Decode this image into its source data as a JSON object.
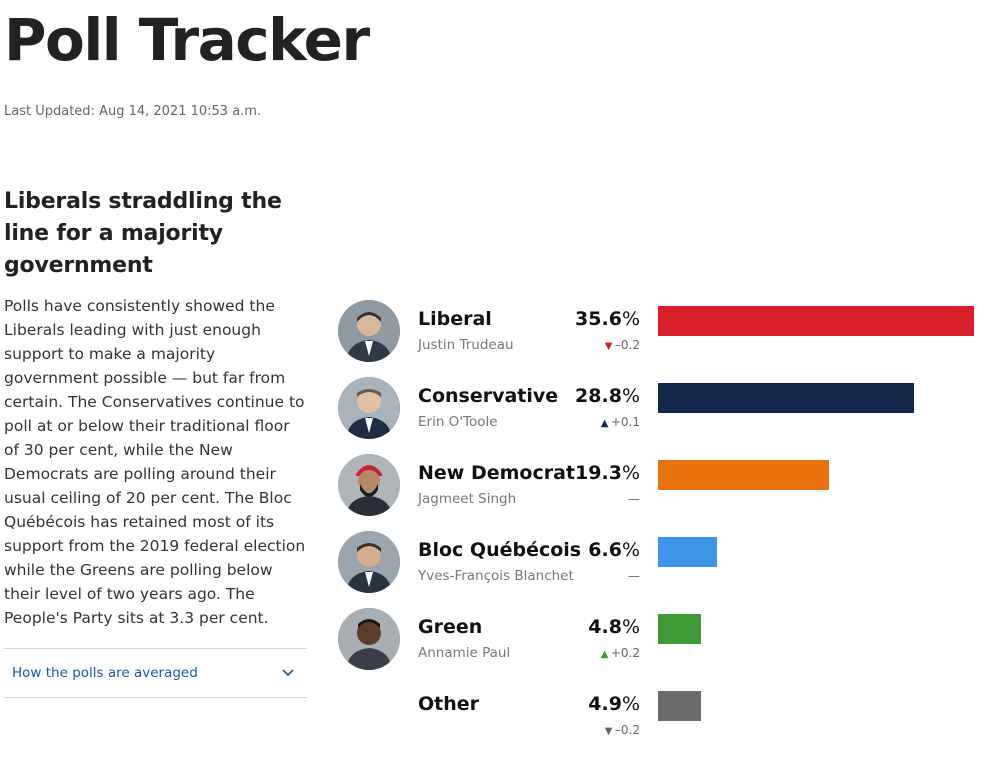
{
  "header": {
    "title": "Poll Tracker",
    "last_updated": "Last Updated: Aug 14, 2021 10:53 a.m."
  },
  "sidebar": {
    "headline": "Liberals straddling the line for a majority government",
    "summary": "Polls have consistently showed the Liberals leading with just enough support to make a majority government possible — but far from certain. The Conservatives continue to poll at or below their traditional floor of 30 per cent, while the New Democrats are polling around their usual ceiling of 20 per cent. The Bloc Québécois has retained most of its support from the 2019 federal election while the Greens are polling below their level of two years ago. The People's Party sits at 3.3 per cent.",
    "accordion_label": "How the polls are averaged"
  },
  "chart_data": {
    "type": "bar",
    "categories": [
      "Liberal",
      "Conservative",
      "New Democrat",
      "Bloc Québécois",
      "Green",
      "Other"
    ],
    "values": [
      35.6,
      28.8,
      19.3,
      6.6,
      4.8,
      4.9
    ],
    "xlim": [
      0,
      35.6
    ]
  },
  "parties": [
    {
      "name": "Liberal",
      "leader": "Justin Trudeau",
      "value": "35.6",
      "unit": "%",
      "change_symbol": "▼",
      "change": "–0.2",
      "color": "#d9202a",
      "avatar_bg": "#8f9aa3",
      "suit": "#2f3a48"
    },
    {
      "name": "Conservative",
      "leader": "Erin O'Toole",
      "value": "28.8",
      "unit": "%",
      "change_symbol": "▲",
      "change": "+0.1",
      "color": "#14284b",
      "avatar_bg": "#a9b3bb",
      "suit": "#1f2c44"
    },
    {
      "name": "New Democrat",
      "leader": "Jagmeet Singh",
      "value": "19.3",
      "unit": "%",
      "change_symbol": "",
      "change": "—",
      "color": "#e8720e",
      "avatar_bg": "#b0b5ba",
      "suit": "#2a2e35"
    },
    {
      "name": "Bloc Québécois",
      "leader": "Yves-François Blanchet",
      "value": "6.6",
      "unit": "%",
      "change_symbol": "",
      "change": "—",
      "color": "#3d95e8",
      "avatar_bg": "#9aa5ae",
      "suit": "#2b3340"
    },
    {
      "name": "Green",
      "leader": "Annamie Paul",
      "value": "4.8",
      "unit": "%",
      "change_symbol": "▲",
      "change": "+0.2",
      "color": "#3d9a35",
      "avatar_bg": "#a7aeb4",
      "suit": "#3a3f47"
    },
    {
      "name": "Other",
      "leader": "",
      "value": "4.9",
      "unit": "%",
      "change_symbol": "▼",
      "change": "–0.2",
      "color": "#6b6b6b"
    }
  ]
}
